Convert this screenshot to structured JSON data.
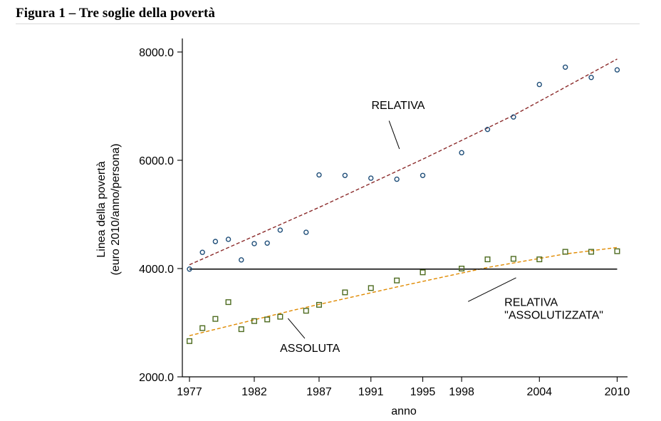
{
  "figure_title": "Figura 1 – Tre soglie della povertà",
  "chart_data": {
    "type": "scatter",
    "xlabel": "anno",
    "ylabel_lines": [
      "Linea della povertà",
      "(euro 2010/anno/persona)"
    ],
    "xlim": [
      1977,
      2010.8
    ],
    "ylim": [
      2000,
      8250
    ],
    "x_ticks": [
      1977,
      1982,
      1987,
      1991,
      1995,
      1998,
      2004,
      2010
    ],
    "y_ticks": [
      2000,
      4000,
      6000,
      8000
    ],
    "y_tick_labels": [
      "2000.0",
      "4000.0",
      "6000.0",
      "8000.0"
    ],
    "grid": false,
    "series": [
      {
        "name": "RELATIVA",
        "marker": "circle",
        "color": "#1f4e79",
        "points": [
          [
            1977,
            3990
          ],
          [
            1978,
            4300
          ],
          [
            1979,
            4500
          ],
          [
            1980,
            4540
          ],
          [
            1981,
            4160
          ],
          [
            1982,
            4460
          ],
          [
            1983,
            4470
          ],
          [
            1984,
            4710
          ],
          [
            1986,
            4670
          ],
          [
            1987,
            5730
          ],
          [
            1989,
            5720
          ],
          [
            1991,
            5670
          ],
          [
            1993,
            5650
          ],
          [
            1995,
            5720
          ],
          [
            1998,
            6140
          ],
          [
            2000,
            6570
          ],
          [
            2002,
            6800
          ],
          [
            2004,
            7400
          ],
          [
            2006,
            7720
          ],
          [
            2008,
            7530
          ],
          [
            2010,
            7670
          ]
        ],
        "trend": {
          "style": "dashed",
          "color": "#8b2a2a",
          "x": [
            1977,
            1987,
            1995,
            2002,
            2010
          ],
          "y": [
            4070,
            5130,
            6020,
            6830,
            7870
          ]
        }
      },
      {
        "name": "ASSOLUTA",
        "marker": "square",
        "color": "#4d6b1f",
        "points": [
          [
            1977,
            2660
          ],
          [
            1978,
            2900
          ],
          [
            1979,
            3070
          ],
          [
            1980,
            3380
          ],
          [
            1981,
            2880
          ],
          [
            1982,
            3030
          ],
          [
            1983,
            3060
          ],
          [
            1984,
            3110
          ],
          [
            1986,
            3220
          ],
          [
            1987,
            3330
          ],
          [
            1989,
            3560
          ],
          [
            1991,
            3640
          ],
          [
            1993,
            3780
          ],
          [
            1995,
            3930
          ],
          [
            1998,
            4000
          ],
          [
            2000,
            4170
          ],
          [
            2002,
            4180
          ],
          [
            2004,
            4170
          ],
          [
            2006,
            4310
          ],
          [
            2008,
            4310
          ],
          [
            2010,
            4320
          ]
        ],
        "trend": {
          "style": "dashed",
          "color": "#e08a00",
          "x": [
            1977,
            1985,
            1993,
            2000,
            2006,
            2010
          ],
          "y": [
            2760,
            3230,
            3660,
            4020,
            4270,
            4390
          ]
        }
      },
      {
        "name": "RELATIVA \"ASSOLUTIZZATA\"",
        "marker": "none",
        "color": "#000000",
        "line": {
          "style": "solid",
          "x": [
            1977,
            2010
          ],
          "y": [
            3990,
            3990
          ]
        }
      }
    ],
    "annotations": [
      {
        "text": "RELATIVA",
        "at": [
          1993.1,
          6950
        ],
        "pointer_from": [
          1992.4,
          6730
        ],
        "pointer_to": [
          1993.2,
          6210
        ]
      },
      {
        "text": "ASSOLUTA",
        "at": [
          1986.3,
          2460
        ],
        "pointer_from": [
          1985.9,
          2710
        ],
        "pointer_to": [
          1984.6,
          3080
        ]
      },
      {
        "text": "RELATIVA",
        "text2": "\"ASSOLUTIZZATA\"",
        "at": [
          2001.3,
          3310
        ],
        "pointer_from": [
          1998.5,
          3390
        ],
        "pointer_to": [
          2002.2,
          3830
        ]
      }
    ]
  }
}
